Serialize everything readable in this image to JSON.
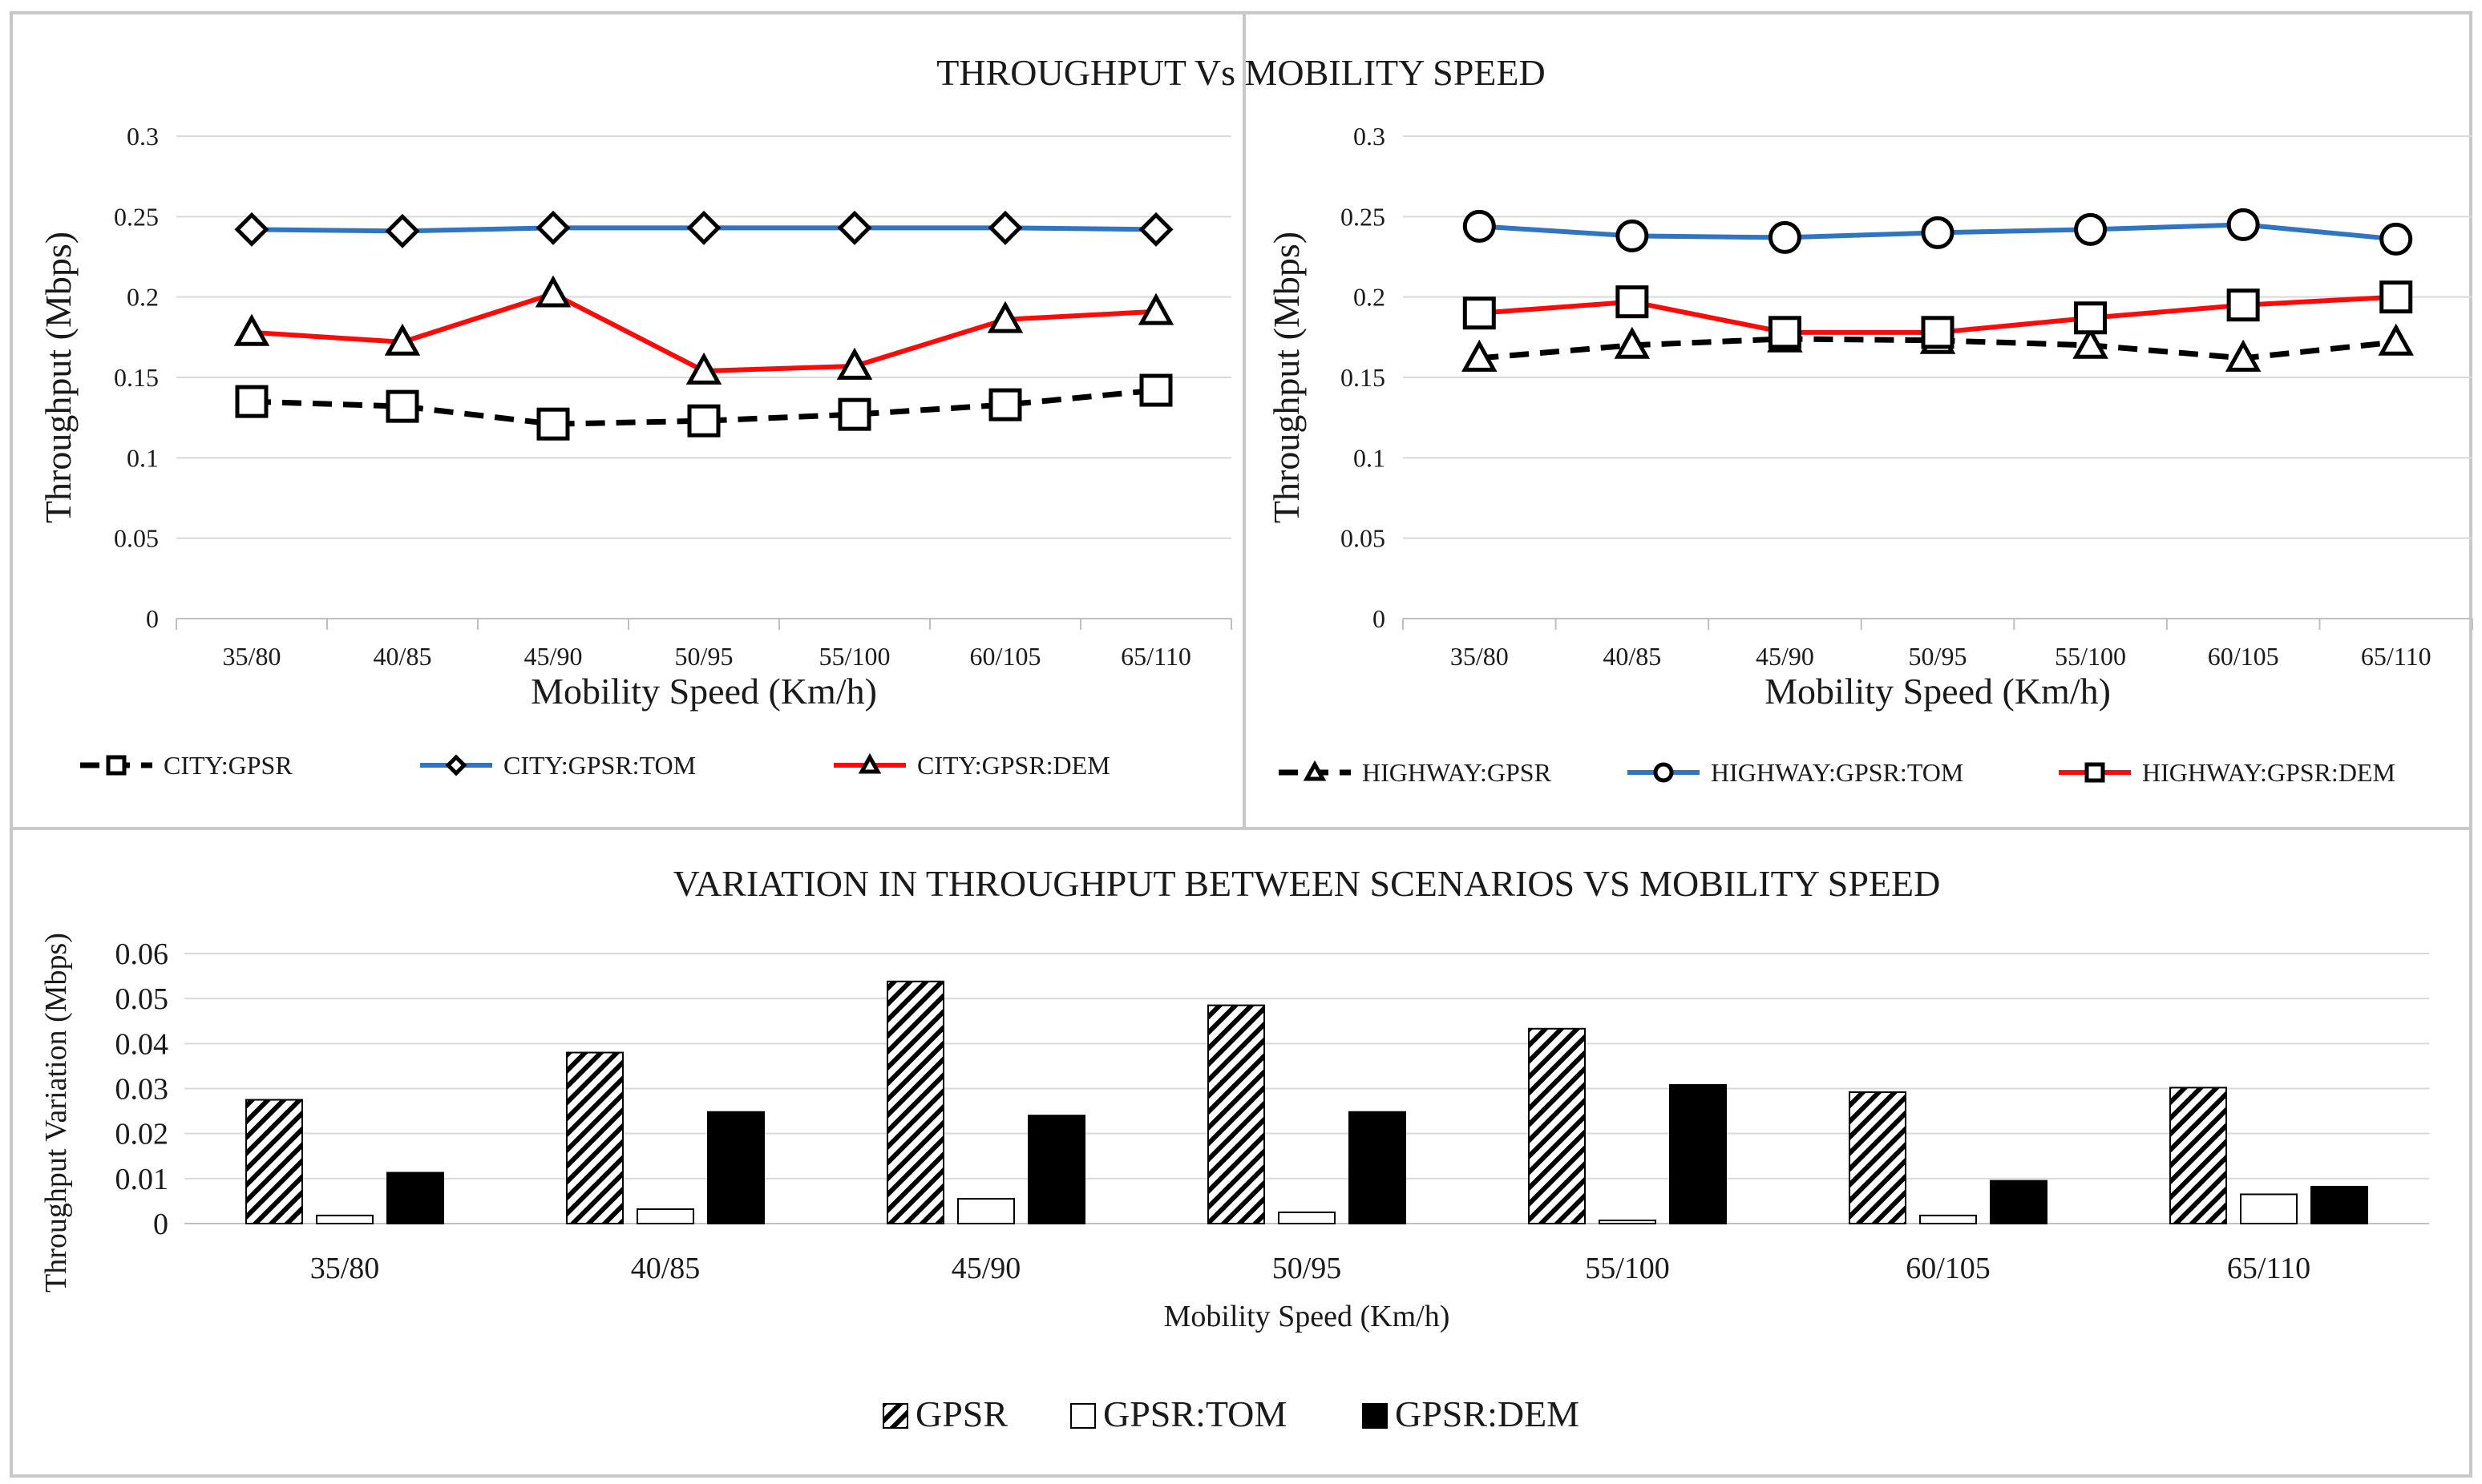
{
  "figure_title": "THROUGHPUT  Vs MOBILITY SPEED",
  "colors": {
    "black": "#000000",
    "blue": "#2f75c2",
    "red": "#ff0a0a",
    "grid": "#d9d9d9",
    "border": "#c8c8c8"
  },
  "chart_data": [
    {
      "id": "city",
      "type": "line",
      "title": "",
      "xlabel": "Mobility Speed (Km/h)",
      "ylabel": "Throughput (Mbps)",
      "ylim": [
        0,
        0.3
      ],
      "yticks": [
        "0",
        "0.05",
        "0.1",
        "0.15",
        "0.2",
        "0.25",
        "0.3"
      ],
      "categories": [
        "35/80",
        "40/85",
        "45/90",
        "50/95",
        "55/100",
        "60/105",
        "65/110"
      ],
      "series": [
        {
          "name": "CITY:GPSR",
          "color": "#000000",
          "dash": true,
          "marker": "square",
          "values": [
            0.135,
            0.132,
            0.121,
            0.123,
            0.127,
            0.133,
            0.142
          ]
        },
        {
          "name": "CITY:GPSR:TOM",
          "color": "#2f75c2",
          "dash": false,
          "marker": "diamond",
          "values": [
            0.242,
            0.241,
            0.243,
            0.243,
            0.243,
            0.243,
            0.242
          ]
        },
        {
          "name": "CITY:GPSR:DEM",
          "color": "#ff0a0a",
          "dash": false,
          "marker": "triangle",
          "values": [
            0.178,
            0.172,
            0.202,
            0.154,
            0.157,
            0.186,
            0.191
          ]
        }
      ]
    },
    {
      "id": "highway",
      "type": "line",
      "title": "",
      "xlabel": "Mobility Speed (Km/h)",
      "ylabel": "Throughput (Mbps)",
      "ylim": [
        0,
        0.3
      ],
      "yticks": [
        "0",
        "0.05",
        "0.1",
        "0.15",
        "0.2",
        "0.25",
        "0.3"
      ],
      "categories": [
        "35/80",
        "40/85",
        "45/90",
        "50/95",
        "55/100",
        "60/105",
        "65/110"
      ],
      "series": [
        {
          "name": "HIGHWAY:GPSR",
          "color": "#000000",
          "dash": true,
          "marker": "triangle",
          "values": [
            0.162,
            0.17,
            0.174,
            0.173,
            0.17,
            0.162,
            0.172
          ]
        },
        {
          "name": "HIGHWAY:GPSR:TOM",
          "color": "#2f75c2",
          "dash": false,
          "marker": "circle",
          "values": [
            0.244,
            0.238,
            0.237,
            0.24,
            0.242,
            0.245,
            0.236
          ]
        },
        {
          "name": "HIGHWAY:GPSR:DEM",
          "color": "#ff0a0a",
          "dash": false,
          "marker": "square",
          "values": [
            0.19,
            0.197,
            0.178,
            0.178,
            0.187,
            0.195,
            0.2
          ]
        }
      ]
    },
    {
      "id": "variation",
      "type": "bar",
      "title": "VARIATION IN THROUGHPUT  BETWEEN SCENARIOS VS MOBILITY  SPEED",
      "xlabel": "Mobility Speed (Km/h)",
      "ylabel": "Throughput  Variation (Mbps)",
      "ylim": [
        0,
        0.06
      ],
      "yticks": [
        "0",
        "0.01",
        "0.02",
        "0.03",
        "0.04",
        "0.05",
        "0.06"
      ],
      "categories": [
        "35/80",
        "40/85",
        "45/90",
        "50/95",
        "55/100",
        "60/105",
        "65/110"
      ],
      "series": [
        {
          "name": "GPSR",
          "fill": "hatch",
          "values": [
            0.0275,
            0.038,
            0.0538,
            0.0485,
            0.0433,
            0.0292,
            0.0302
          ]
        },
        {
          "name": "GPSR:TOM",
          "fill": "white",
          "values": [
            0.0018,
            0.0032,
            0.0055,
            0.0025,
            0.0007,
            0.0018,
            0.0065
          ]
        },
        {
          "name": "GPSR:DEM",
          "fill": "black",
          "values": [
            0.0113,
            0.0248,
            0.024,
            0.0248,
            0.0308,
            0.0095,
            0.0082
          ]
        }
      ]
    }
  ]
}
